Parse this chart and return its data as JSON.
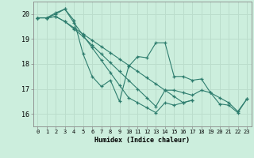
{
  "bg_color": "#cceedd",
  "grid_color": "#bbddcc",
  "line_color": "#2e7d6e",
  "xlabel": "Humidex (Indice chaleur)",
  "ylim": [
    15.5,
    20.5
  ],
  "xlim": [
    -0.5,
    23.5
  ],
  "yticks": [
    16,
    17,
    18,
    19,
    20
  ],
  "xtick_labels": [
    "0",
    "1",
    "2",
    "3",
    "4",
    "5",
    "6",
    "7",
    "8",
    "9",
    "10",
    "11",
    "12",
    "13",
    "14",
    "15",
    "16",
    "17",
    "18",
    "19",
    "20",
    "21",
    "22",
    "23"
  ],
  "xticks": [
    0,
    1,
    2,
    3,
    4,
    5,
    6,
    7,
    8,
    9,
    10,
    11,
    12,
    13,
    14,
    15,
    16,
    17,
    18,
    19,
    20,
    21,
    22,
    23
  ],
  "series": [
    [
      19.85,
      19.85,
      20.0,
      20.2,
      19.75,
      18.4,
      17.5,
      17.1,
      17.35,
      16.5,
      17.9,
      18.3,
      18.25,
      18.85,
      18.85,
      17.5,
      17.5,
      17.35,
      17.4,
      16.85,
      16.4,
      16.35,
      16.05,
      16.6
    ],
    [
      19.85,
      19.85,
      20.05,
      20.2,
      19.65,
      19.15,
      18.65,
      18.15,
      17.65,
      17.15,
      16.65,
      16.45,
      16.25,
      16.05,
      16.45,
      16.35,
      16.45,
      16.55
    ],
    [
      19.85,
      19.85,
      19.9,
      19.7,
      19.45,
      19.2,
      18.95,
      18.7,
      18.45,
      18.2,
      17.95,
      17.7,
      17.45,
      17.2,
      16.95,
      16.7,
      16.45,
      16.55
    ],
    [
      19.85,
      19.85,
      19.9,
      19.7,
      19.4,
      19.1,
      18.75,
      18.4,
      18.05,
      17.7,
      17.35,
      17.0,
      16.65,
      16.3,
      16.95,
      16.95,
      16.85,
      16.75,
      16.95,
      16.85,
      16.65,
      16.45,
      16.1,
      16.6
    ]
  ],
  "series_x": [
    [
      0,
      1,
      2,
      3,
      4,
      5,
      6,
      7,
      8,
      9,
      10,
      11,
      12,
      13,
      14,
      15,
      16,
      17,
      18,
      19,
      20,
      21,
      22,
      23
    ],
    [
      0,
      1,
      2,
      3,
      4,
      5,
      6,
      7,
      8,
      9,
      10,
      11,
      12,
      13,
      14,
      15,
      16,
      17
    ],
    [
      0,
      1,
      2,
      3,
      4,
      5,
      6,
      7,
      8,
      9,
      10,
      11,
      12,
      13,
      14,
      15,
      16,
      17
    ],
    [
      0,
      1,
      2,
      3,
      4,
      5,
      6,
      7,
      8,
      9,
      10,
      11,
      12,
      13,
      14,
      15,
      16,
      17,
      18,
      19,
      20,
      21,
      22,
      23
    ]
  ],
  "title_fontsize": 7,
  "xlabel_fontsize": 6,
  "tick_fontsize": 5,
  "linewidth": 0.8,
  "markersize": 3,
  "marker": "+"
}
